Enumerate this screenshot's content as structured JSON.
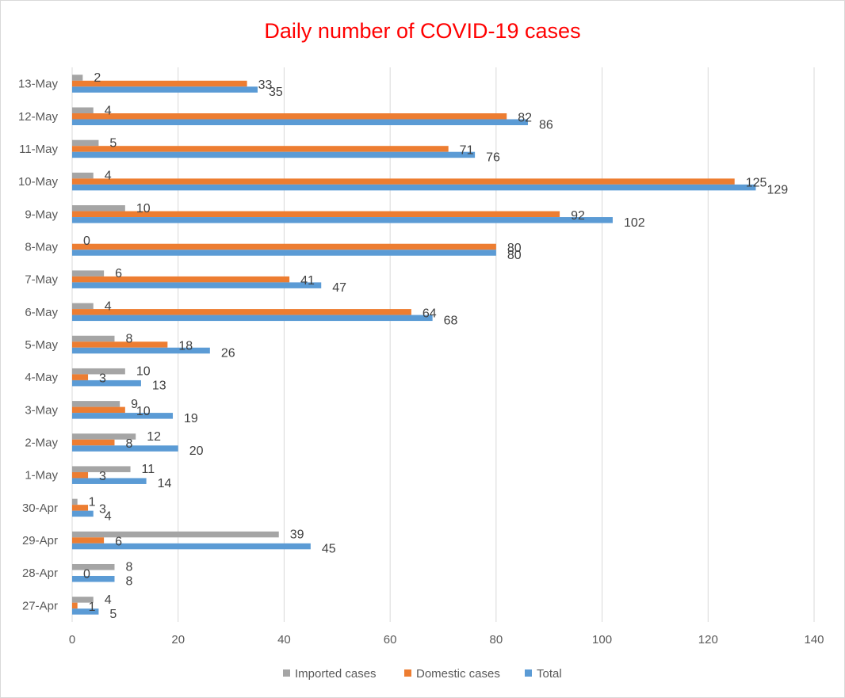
{
  "chart_data": {
    "type": "bar",
    "orientation": "horizontal",
    "title": "Daily number of COVID-19 cases",
    "xlabel": "",
    "ylabel": "",
    "xlim": [
      0,
      140
    ],
    "xticks": [
      0,
      20,
      40,
      60,
      80,
      100,
      120,
      140
    ],
    "grid": true,
    "legend_position": "bottom",
    "categories": [
      "27-Apr",
      "28-Apr",
      "29-Apr",
      "30-Apr",
      "1-May",
      "2-May",
      "3-May",
      "4-May",
      "5-May",
      "6-May",
      "7-May",
      "8-May",
      "9-May",
      "10-May",
      "11-May",
      "12-May",
      "13-May"
    ],
    "series": [
      {
        "name": "Imported cases",
        "color": "#A5A5A5",
        "values": [
          4,
          8,
          39,
          1,
          11,
          12,
          9,
          10,
          8,
          4,
          6,
          0,
          10,
          4,
          5,
          4,
          2
        ]
      },
      {
        "name": "Domestic cases",
        "color": "#ED7D31",
        "values": [
          1,
          0,
          6,
          3,
          3,
          8,
          10,
          3,
          18,
          64,
          41,
          80,
          92,
          125,
          71,
          82,
          33
        ]
      },
      {
        "name": "Total",
        "color": "#5B9BD5",
        "values": [
          5,
          8,
          45,
          4,
          14,
          20,
          19,
          13,
          26,
          68,
          47,
          80,
          102,
          129,
          76,
          86,
          35
        ]
      }
    ],
    "title_color": "#FF0000"
  }
}
